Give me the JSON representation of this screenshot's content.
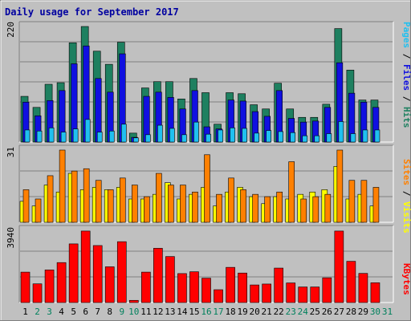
{
  "chart_data": [
    {
      "type": "bar",
      "title": "Daily usage for September 2017",
      "panel": "hits-files-pages",
      "ymax_label": "220",
      "ylim": [
        0,
        220
      ],
      "categories": [
        "1",
        "2",
        "3",
        "4",
        "5",
        "6",
        "7",
        "8",
        "9",
        "10",
        "11",
        "12",
        "13",
        "14",
        "15",
        "16",
        "17",
        "18",
        "19",
        "20",
        "21",
        "22",
        "23",
        "24",
        "25",
        "26",
        "27",
        "28",
        "29",
        "30",
        "31"
      ],
      "series": [
        {
          "name": "Hits",
          "color": "#1e8060",
          "values": [
            87,
            66,
            110,
            113,
            189,
            220,
            173,
            148,
            190,
            17,
            103,
            115,
            115,
            82,
            121,
            94,
            34,
            94,
            92,
            71,
            63,
            112,
            63,
            47,
            47,
            72,
            216,
            137,
            80,
            80,
            0
          ]
        },
        {
          "name": "Files",
          "color": "#1010e0",
          "values": [
            76,
            50,
            79,
            98,
            149,
            183,
            121,
            95,
            168,
            9,
            87,
            95,
            85,
            63,
            98,
            29,
            25,
            80,
            78,
            58,
            49,
            98,
            45,
            38,
            40,
            66,
            151,
            93,
            76,
            66,
            0
          ]
        },
        {
          "name": "Pages",
          "color": "#20c0f0",
          "values": [
            23,
            21,
            27,
            19,
            25,
            43,
            19,
            21,
            34,
            8,
            14,
            32,
            26,
            14,
            38,
            15,
            23,
            27,
            26,
            17,
            22,
            20,
            18,
            12,
            12,
            16,
            39,
            16,
            23,
            23,
            0
          ]
        }
      ]
    },
    {
      "type": "bar",
      "panel": "visits-sites",
      "ymax_label": "31",
      "ylim": [
        0,
        31
      ],
      "categories": [
        "1",
        "2",
        "3",
        "4",
        "5",
        "6",
        "7",
        "8",
        "9",
        "10",
        "11",
        "12",
        "13",
        "14",
        "15",
        "16",
        "17",
        "18",
        "19",
        "20",
        "21",
        "22",
        "23",
        "24",
        "25",
        "26",
        "27",
        "28",
        "29",
        "30",
        "31"
      ],
      "series": [
        {
          "name": "Visits",
          "color": "#ffff00",
          "values": [
            9,
            7,
            16,
            13,
            21,
            14,
            15,
            14,
            15,
            10,
            10,
            12,
            17,
            10,
            12,
            15,
            7,
            13,
            15,
            11,
            8,
            11,
            10,
            12,
            13,
            14,
            24,
            10,
            12,
            7,
            0
          ]
        },
        {
          "name": "Sites",
          "color": "#ff8000",
          "values": [
            14,
            10,
            20,
            31,
            22,
            23,
            18,
            14,
            19,
            16,
            11,
            21,
            16,
            16,
            13,
            29,
            12,
            19,
            14,
            12,
            11,
            13,
            26,
            10,
            11,
            12,
            31,
            18,
            18,
            15,
            0
          ]
        }
      ]
    },
    {
      "type": "bar",
      "panel": "kbytes",
      "ymax_label": "3940",
      "ylim": [
        0,
        3940
      ],
      "categories": [
        "1",
        "2",
        "3",
        "4",
        "5",
        "6",
        "7",
        "8",
        "9",
        "10",
        "11",
        "12",
        "13",
        "14",
        "15",
        "16",
        "17",
        "18",
        "19",
        "20",
        "21",
        "22",
        "23",
        "24",
        "25",
        "26",
        "27",
        "28",
        "29",
        "30",
        "31"
      ],
      "series": [
        {
          "name": "KBytes",
          "color": "#ff0000",
          "values": [
            1660,
            1020,
            1780,
            2180,
            3200,
            3900,
            3110,
            1950,
            3320,
            120,
            1660,
            2960,
            2510,
            1580,
            1680,
            1330,
            700,
            1920,
            1610,
            960,
            1010,
            1880,
            1070,
            850,
            850,
            1350,
            3900,
            2250,
            1590,
            1080,
            0
          ]
        }
      ]
    }
  ],
  "axis": {
    "day_labels": [
      "1",
      "2",
      "3",
      "4",
      "5",
      "6",
      "7",
      "8",
      "9",
      "10",
      "11",
      "12",
      "13",
      "14",
      "15",
      "16",
      "17",
      "18",
      "19",
      "20",
      "21",
      "22",
      "23",
      "24",
      "25",
      "26",
      "27",
      "28",
      "29",
      "30",
      "31"
    ],
    "weekend_days": [
      "2",
      "3",
      "9",
      "10",
      "16",
      "17",
      "23",
      "24",
      "30",
      "31"
    ],
    "weekday_color": "#000000",
    "weekend_color": "#00805c"
  },
  "right_labels": [
    {
      "panel": "hits-files-pages",
      "parts": [
        {
          "text": "Pages",
          "color": "#20c0f0"
        },
        {
          "text": " / ",
          "color": "#000000"
        },
        {
          "text": "Files",
          "color": "#1010e0"
        },
        {
          "text": " / ",
          "color": "#000000"
        },
        {
          "text": "Hits",
          "color": "#1e8060"
        }
      ]
    },
    {
      "panel": "visits-sites",
      "parts": [
        {
          "text": "Sites",
          "color": "#ff8000"
        },
        {
          "text": " / ",
          "color": "#000000"
        },
        {
          "text": "Visits",
          "color": "#ffff00"
        }
      ]
    },
    {
      "panel": "kbytes",
      "parts": [
        {
          "text": "KBytes",
          "color": "#ff0000"
        }
      ]
    }
  ],
  "colors": {
    "panel_bg": "#c0c0c0",
    "frame_bg": "#c0c0c0",
    "title_color": "#0000a0"
  }
}
